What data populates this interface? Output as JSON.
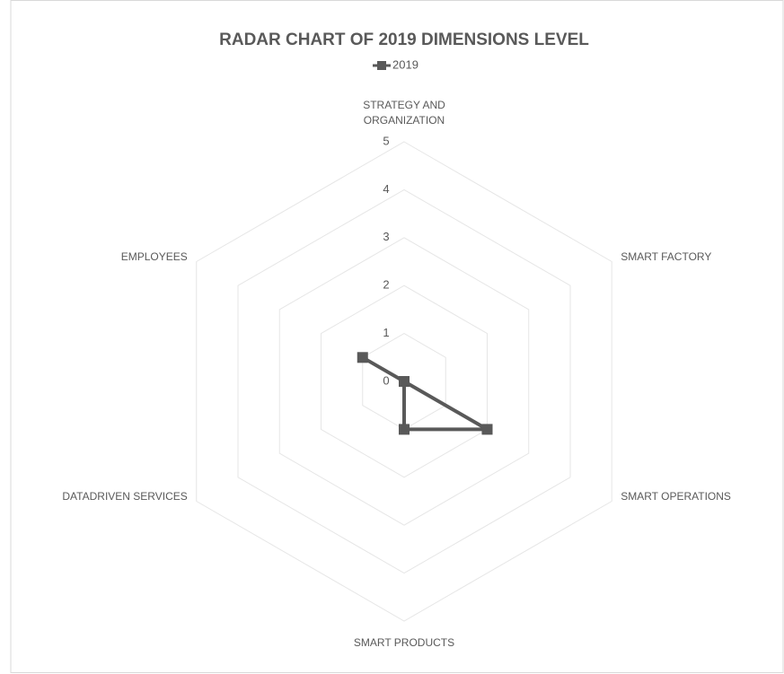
{
  "chart_data": {
    "type": "radar",
    "title": "RADAR CHART OF 2019 DIMENSIONS LEVEL",
    "categories": [
      "STRATEGY AND ORGANIZATION",
      "SMART FACTORY",
      "SMART OPERATIONS",
      "SMART PRODUCTS",
      "DATADRIVEN SERVICES",
      "EMPLOYEES"
    ],
    "series": [
      {
        "name": "2019",
        "color": "#595959",
        "values": [
          0,
          0,
          2,
          1,
          0,
          1
        ]
      }
    ],
    "ylim": [
      0,
      5
    ],
    "yticks": [
      0,
      1,
      2,
      3,
      4,
      5
    ],
    "grid": true,
    "legend": "top"
  }
}
